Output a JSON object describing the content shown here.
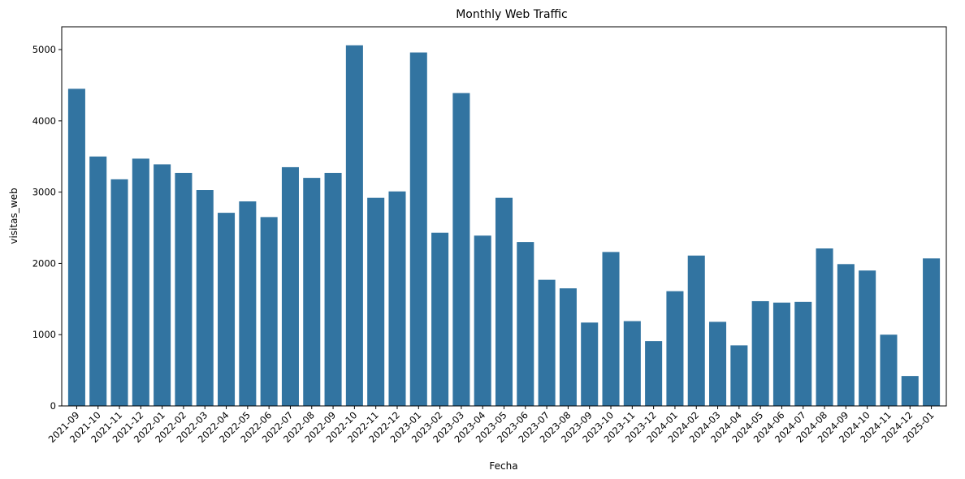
{
  "chart_data": {
    "type": "bar",
    "title": "Monthly Web Traffic",
    "xlabel": "Fecha",
    "ylabel": "visitas_web",
    "ylim": [
      0,
      5320
    ],
    "yticks": [
      0,
      1000,
      2000,
      3000,
      4000,
      5000
    ],
    "grid": false,
    "legend": "none",
    "bar_color": "#3274a1",
    "categories": [
      "2021-09",
      "2021-10",
      "2021-11",
      "2021-12",
      "2022-01",
      "2022-02",
      "2022-03",
      "2022-04",
      "2022-05",
      "2022-06",
      "2022-07",
      "2022-08",
      "2022-09",
      "2022-10",
      "2022-11",
      "2022-12",
      "2023-01",
      "2023-02",
      "2023-03",
      "2023-04",
      "2023-05",
      "2023-06",
      "2023-07",
      "2023-08",
      "2023-09",
      "2023-10",
      "2023-11",
      "2023-12",
      "2024-01",
      "2024-02",
      "2024-03",
      "2024-04",
      "2024-05",
      "2024-06",
      "2024-07",
      "2024-08",
      "2024-09",
      "2024-10",
      "2024-11",
      "2024-12",
      "2025-01"
    ],
    "values": [
      4450,
      3500,
      3180,
      3470,
      3390,
      3270,
      3030,
      2710,
      2870,
      2650,
      3350,
      3200,
      3270,
      5060,
      2920,
      3010,
      4960,
      2430,
      4390,
      2390,
      2920,
      2300,
      1770,
      1650,
      1170,
      2160,
      1190,
      910,
      1610,
      2110,
      1180,
      850,
      1470,
      1450,
      1460,
      2210,
      1990,
      1900,
      1000,
      420,
      2070
    ]
  }
}
